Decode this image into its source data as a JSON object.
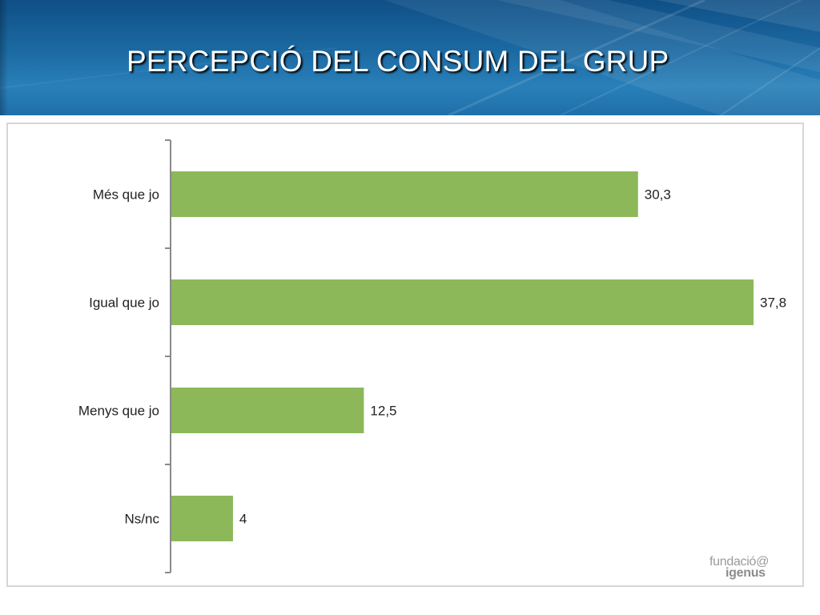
{
  "slide": {
    "title": "PERCEPCIÓ DEL CONSUM DEL GRUP"
  },
  "colors": {
    "header_dark": "#0f4f86",
    "header_light": "#2980b9",
    "bar": "#8cb85a",
    "axis": "#8a8a8a",
    "frame": "#d6d6d6"
  },
  "logo": {
    "line1": "fundació@",
    "line2": "igenus"
  },
  "chart_data": {
    "type": "bar",
    "orientation": "horizontal",
    "categories": [
      "Més que jo",
      "Igual que jo",
      "Menys que jo",
      "Ns/nc"
    ],
    "values": [
      30.3,
      37.8,
      12.5,
      4
    ],
    "value_labels": [
      "30,3",
      "37,8",
      "12,5",
      "4"
    ],
    "title": "",
    "xlabel": "",
    "ylabel": "",
    "xlim": [
      0,
      37.8
    ],
    "grid": false,
    "legend": "none",
    "bar_color": "#8cb85a"
  }
}
